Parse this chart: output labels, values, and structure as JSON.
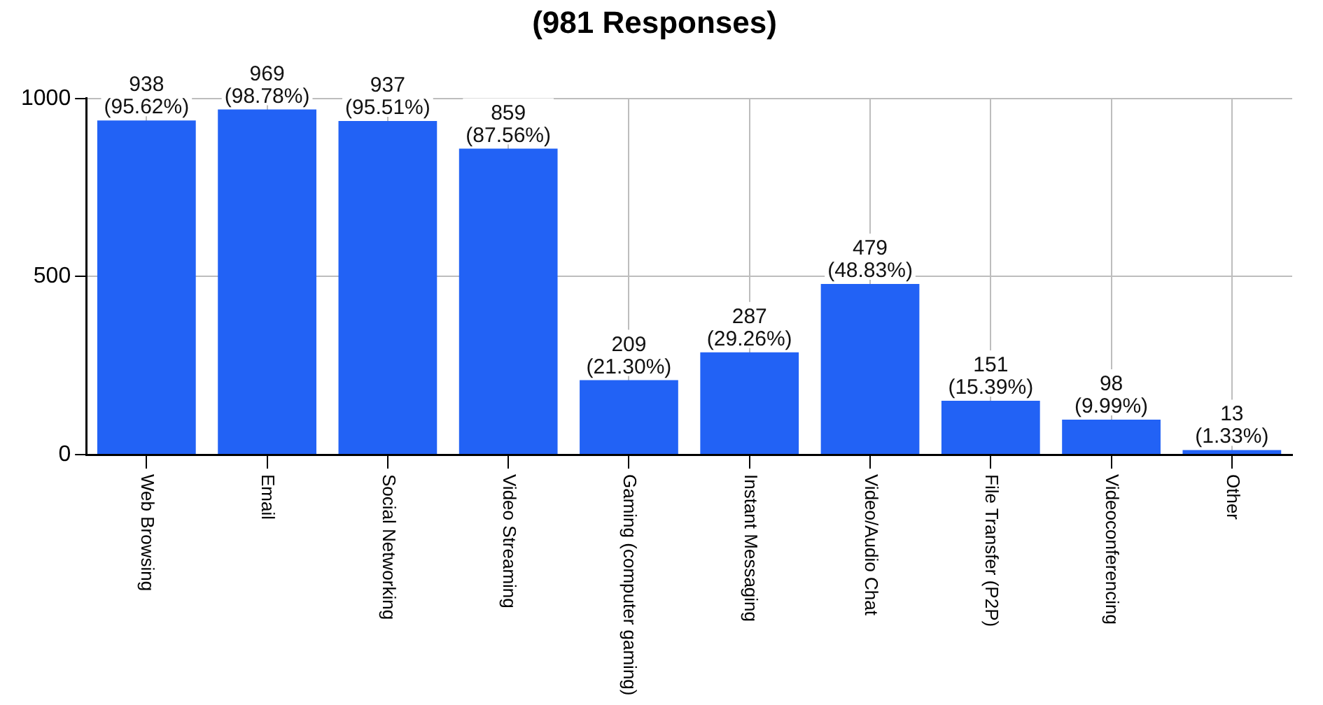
{
  "chart_data": {
    "type": "bar",
    "title": "(981 Responses)",
    "categories": [
      "Web Browsing",
      "Email",
      "Social Networking",
      "Video Streaming",
      "Gaming (computer gaming)",
      "Instant Messaging",
      "Video/Audio Chat",
      "File Transfer (P2P)",
      "Videoconferencing",
      "Other"
    ],
    "values": [
      938,
      969,
      937,
      859,
      209,
      287,
      479,
      151,
      98,
      13
    ],
    "color": "#2262f5",
    "value_labels": [
      "938 (95.62%)",
      "969 (98.78%)",
      "937 (95.51%)",
      "859 (87.56%)",
      "209 (21.30%)",
      "287 (29.26%)",
      "479 (48.83%)",
      "151 (15.39%)",
      "98 (9.99%)",
      "13 (1.33%)"
    ],
    "ylim": [
      0,
      1000
    ],
    "yticks": [
      0,
      500,
      1000
    ],
    "grid": true
  }
}
